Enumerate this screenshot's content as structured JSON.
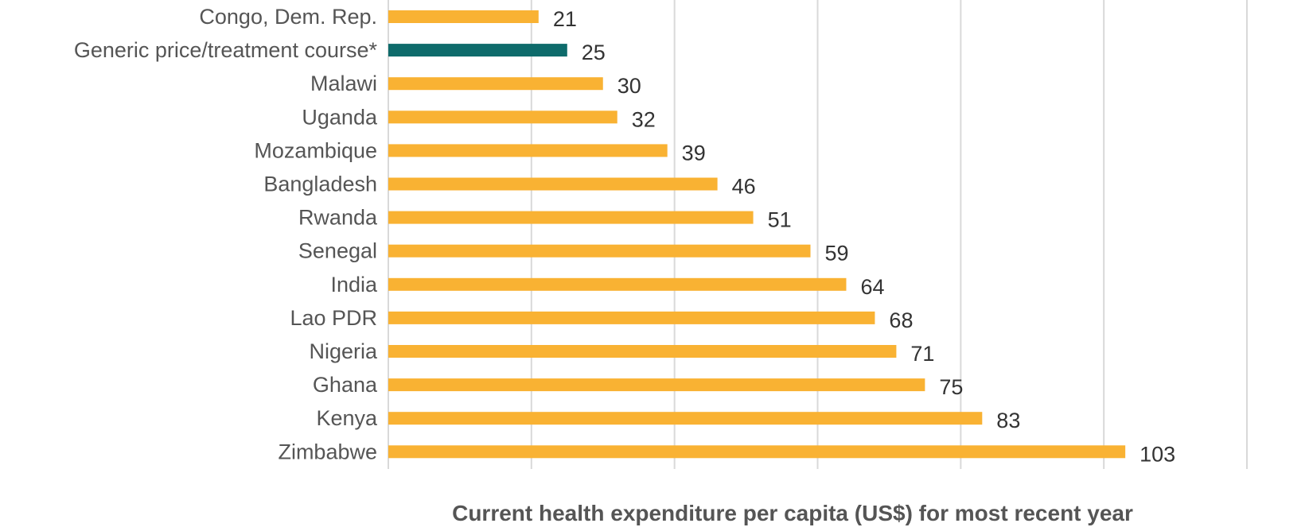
{
  "chart_data": {
    "type": "bar",
    "orientation": "horizontal",
    "categories": [
      "Congo, Dem. Rep.",
      "Generic price/treatment course*",
      "Malawi",
      "Uganda",
      "Mozambique",
      "Bangladesh",
      "Rwanda",
      "Senegal",
      "India",
      "Lao PDR",
      "Nigeria",
      "Ghana",
      "Kenya",
      "Zimbabwe"
    ],
    "values": [
      21,
      25,
      30,
      32,
      39,
      46,
      51,
      59,
      64,
      68,
      71,
      75,
      83,
      103
    ],
    "highlight_index": 1,
    "colors": {
      "default": "#F9B233",
      "highlight": "#0E6B6B"
    },
    "xlabel": "Current health expenditure per capita (US$) for most recent year",
    "ylabel": "",
    "xlim": [
      0,
      120
    ],
    "x_tick_step": 20,
    "show_x_tick_labels": false,
    "grid": "vertical",
    "data_labels": true
  }
}
